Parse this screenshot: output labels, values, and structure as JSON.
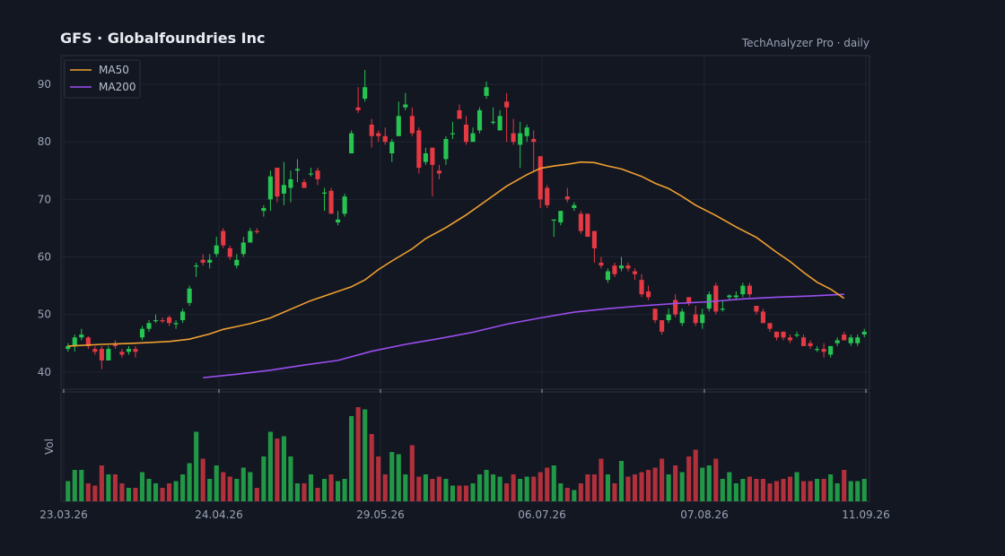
{
  "chart_data": {
    "type": "candlestick",
    "title": "GFS  ·  Globalfoundries Inc",
    "subtitle": "TechAnalyzer Pro · daily",
    "colors": {
      "background": "#131722",
      "grid": "#1f2433",
      "up": "#26c451",
      "down": "#e53944",
      "ma50": "#f0a030",
      "ma200": "#9b4ef0",
      "text": "#9aa3b5"
    },
    "ylim": [
      37,
      95
    ],
    "yticks": [
      40,
      50,
      60,
      70,
      80,
      90
    ],
    "xticks": [
      "23.03.26",
      "24.04.26",
      "29.05.26",
      "06.07.26",
      "07.08.26",
      "11.09.26"
    ],
    "volume_label": "Vol",
    "legend": [
      "MA50",
      "MA200"
    ],
    "legend_position": "top-left",
    "candles": [
      [
        44.0,
        45.0,
        43.5,
        44.5,
        0.9
      ],
      [
        44.5,
        46.5,
        43.5,
        46.0,
        1.4
      ],
      [
        46.0,
        47.5,
        45.5,
        46.5,
        1.4
      ],
      [
        46.0,
        46.2,
        44.0,
        44.5,
        0.8
      ],
      [
        44.0,
        44.5,
        43.0,
        43.5,
        0.7
      ],
      [
        44.0,
        44.5,
        40.5,
        42.0,
        1.6
      ],
      [
        42.0,
        44.5,
        42.0,
        44.0,
        1.2
      ],
      [
        45.0,
        45.5,
        44.0,
        44.5,
        1.2
      ],
      [
        43.5,
        44.0,
        42.5,
        43.0,
        0.8
      ],
      [
        43.5,
        44.5,
        43.0,
        44.0,
        0.6
      ],
      [
        44.0,
        44.5,
        42.5,
        43.5,
        0.6
      ],
      [
        46.0,
        48.0,
        45.5,
        47.5,
        1.3
      ],
      [
        47.5,
        49.0,
        47.0,
        48.5,
        1.0
      ],
      [
        49.0,
        50.0,
        48.5,
        49.0,
        0.8
      ],
      [
        49.0,
        49.5,
        48.5,
        48.8,
        0.6
      ],
      [
        49.5,
        49.8,
        48.0,
        48.5,
        0.8
      ],
      [
        48.3,
        49.0,
        47.5,
        48.5,
        0.9
      ],
      [
        49.0,
        51.0,
        48.5,
        50.5,
        1.2
      ],
      [
        52.0,
        55.0,
        51.5,
        54.5,
        1.7
      ],
      [
        58.5,
        59.0,
        56.5,
        58.5,
        3.1
      ],
      [
        59.5,
        60.5,
        58.5,
        59.0,
        1.9
      ],
      [
        59.0,
        60.5,
        58.0,
        59.5,
        1.0
      ],
      [
        60.5,
        63.5,
        60.0,
        62.0,
        1.6
      ],
      [
        64.5,
        65.0,
        61.5,
        62.0,
        1.3
      ],
      [
        61.5,
        62.0,
        59.5,
        60.0,
        1.1
      ],
      [
        58.5,
        60.5,
        58.0,
        59.5,
        1.0
      ],
      [
        60.5,
        63.5,
        60.0,
        62.5,
        1.5
      ],
      [
        62.5,
        65.0,
        62.5,
        64.5,
        1.3
      ],
      [
        64.5,
        65.0,
        64.0,
        64.3,
        0.6
      ],
      [
        68.0,
        69.0,
        67.0,
        68.5,
        2.0
      ],
      [
        70.0,
        75.0,
        68.0,
        74.0,
        3.1
      ],
      [
        75.5,
        75.5,
        69.5,
        70.5,
        2.8
      ],
      [
        71.0,
        76.5,
        69.0,
        72.5,
        2.9
      ],
      [
        72.0,
        75.0,
        69.5,
        73.5,
        2.0
      ],
      [
        75.0,
        77.0,
        73.0,
        75.3,
        0.8
      ],
      [
        73.0,
        73.5,
        72.0,
        72.0,
        0.8
      ],
      [
        74.5,
        75.5,
        74.0,
        74.5,
        1.2
      ],
      [
        75.0,
        75.5,
        72.5,
        73.5,
        0.6
      ],
      [
        71.0,
        72.0,
        68.0,
        71.2,
        1.0
      ],
      [
        71.5,
        72.0,
        68.0,
        67.5,
        1.2
      ],
      [
        66.0,
        68.0,
        65.5,
        66.5,
        0.9
      ],
      [
        67.5,
        71.0,
        67.0,
        70.5,
        1.0
      ],
      [
        78.0,
        82.0,
        78.0,
        81.5,
        3.8
      ],
      [
        86.0,
        89.5,
        85.0,
        85.5,
        4.2
      ],
      [
        87.5,
        92.5,
        87.0,
        89.5,
        4.1
      ],
      [
        83.0,
        84.0,
        79.0,
        81.0,
        3.0
      ],
      [
        81.5,
        82.0,
        80.0,
        81.0,
        2.0
      ],
      [
        81.0,
        82.5,
        79.5,
        80.0,
        1.2
      ],
      [
        78.0,
        80.5,
        76.5,
        80.0,
        2.2
      ],
      [
        81.0,
        87.0,
        81.0,
        84.5,
        2.1
      ],
      [
        86.0,
        88.5,
        85.5,
        86.5,
        1.2
      ],
      [
        84.5,
        86.0,
        81.0,
        81.5,
        2.5
      ],
      [
        82.0,
        82.5,
        74.5,
        75.5,
        1.1
      ],
      [
        76.5,
        79.0,
        76.0,
        78.0,
        1.2
      ],
      [
        79.0,
        79.0,
        70.5,
        76.0,
        1.0
      ],
      [
        75.0,
        76.0,
        73.5,
        74.5,
        1.1
      ],
      [
        77.0,
        81.0,
        76.0,
        80.5,
        1.0
      ],
      [
        81.5,
        83.5,
        80.5,
        81.5,
        0.7
      ],
      [
        85.5,
        86.5,
        84.5,
        84.0,
        0.7
      ],
      [
        83.0,
        84.5,
        79.5,
        80.0,
        0.7
      ],
      [
        80.0,
        82.5,
        80.0,
        81.5,
        0.8
      ],
      [
        82.0,
        86.0,
        81.5,
        85.5,
        1.2
      ],
      [
        88.0,
        90.5,
        87.5,
        89.5,
        1.4
      ],
      [
        83.5,
        86.0,
        83.0,
        83.5,
        1.2
      ],
      [
        82.0,
        85.5,
        82.0,
        84.5,
        1.1
      ],
      [
        87.0,
        88.5,
        80.0,
        86.0,
        0.8
      ],
      [
        81.5,
        84.0,
        79.5,
        80.0,
        1.2
      ],
      [
        79.5,
        83.5,
        75.5,
        81.5,
        1.0
      ],
      [
        81.0,
        83.0,
        80.0,
        82.5,
        1.1
      ],
      [
        80.5,
        82.0,
        75.0,
        80.0,
        1.1
      ],
      [
        77.5,
        77.5,
        68.5,
        70.0,
        1.3
      ],
      [
        72.0,
        72.5,
        68.5,
        69.0,
        1.5
      ],
      [
        66.5,
        66.5,
        63.5,
        66.5,
        1.6
      ],
      [
        66.0,
        68.0,
        65.5,
        68.0,
        0.8
      ],
      [
        70.5,
        72.0,
        69.5,
        70.0,
        0.6
      ],
      [
        68.5,
        69.5,
        68.0,
        69.0,
        0.5
      ],
      [
        67.5,
        68.0,
        64.0,
        64.5,
        0.8
      ],
      [
        67.5,
        67.5,
        63.5,
        63.5,
        1.2
      ],
      [
        64.5,
        64.5,
        59.0,
        61.5,
        1.2
      ],
      [
        59.0,
        60.0,
        58.0,
        58.5,
        1.9
      ],
      [
        56.0,
        58.0,
        55.5,
        57.5,
        1.2
      ],
      [
        58.5,
        59.0,
        56.5,
        57.0,
        0.8
      ],
      [
        58.0,
        60.0,
        57.5,
        58.5,
        1.8
      ],
      [
        58.5,
        59.0,
        57.5,
        58.0,
        1.1
      ],
      [
        57.5,
        58.0,
        56.0,
        57.0,
        1.2
      ],
      [
        56.0,
        57.0,
        53.0,
        53.5,
        1.3
      ],
      [
        54.0,
        55.0,
        52.5,
        53.0,
        1.4
      ],
      [
        51.0,
        51.0,
        48.5,
        49.0,
        1.5
      ],
      [
        49.0,
        49.0,
        46.5,
        47.0,
        1.9
      ],
      [
        49.0,
        51.0,
        48.5,
        50.0,
        1.2
      ],
      [
        52.5,
        53.5,
        49.5,
        50.0,
        1.6
      ],
      [
        48.5,
        51.0,
        48.0,
        50.5,
        1.3
      ],
      [
        53.0,
        53.0,
        51.5,
        52.0,
        2.0
      ],
      [
        50.0,
        51.5,
        48.0,
        48.5,
        2.3
      ],
      [
        48.5,
        51.0,
        47.5,
        50.0,
        1.5
      ],
      [
        51.0,
        54.0,
        50.5,
        53.5,
        1.6
      ],
      [
        55.0,
        55.5,
        50.0,
        50.5,
        1.9
      ],
      [
        51.0,
        52.5,
        50.5,
        51.0,
        1.0
      ],
      [
        53.0,
        53.5,
        52.5,
        53.3,
        1.3
      ],
      [
        53.0,
        54.0,
        52.5,
        53.3,
        0.8
      ],
      [
        53.5,
        55.5,
        53.0,
        55.0,
        1.0
      ],
      [
        55.0,
        55.5,
        53.0,
        53.5,
        1.1
      ],
      [
        51.5,
        51.5,
        50.0,
        50.5,
        1.0
      ],
      [
        50.5,
        51.0,
        48.5,
        48.5,
        1.0
      ],
      [
        48.5,
        48.5,
        47.0,
        47.5,
        0.8
      ],
      [
        47.0,
        47.0,
        45.5,
        46.0,
        0.9
      ],
      [
        47.0,
        47.0,
        45.5,
        46.0,
        1.0
      ],
      [
        46.0,
        46.5,
        45.0,
        45.5,
        1.1
      ],
      [
        46.5,
        47.0,
        46.0,
        46.5,
        1.3
      ],
      [
        46.0,
        46.5,
        44.5,
        44.5,
        0.9
      ],
      [
        45.0,
        45.5,
        44.0,
        44.5,
        0.9
      ],
      [
        44.0,
        44.5,
        43.5,
        44.0,
        1.0
      ],
      [
        44.0,
        45.0,
        42.5,
        43.5,
        1.0
      ],
      [
        43.0,
        44.5,
        42.5,
        44.5,
        1.2
      ],
      [
        45.0,
        46.0,
        44.5,
        45.5,
        0.8
      ],
      [
        46.5,
        47.0,
        45.5,
        45.5,
        1.4
      ],
      [
        45.0,
        46.5,
        44.5,
        46.0,
        0.9
      ],
      [
        45.0,
        46.5,
        44.5,
        46.0,
        0.9
      ],
      [
        46.5,
        47.5,
        46.0,
        47.0,
        1.0
      ]
    ],
    "ma50": [
      [
        0,
        44.5
      ],
      [
        5,
        44.8
      ],
      [
        10,
        45.0
      ],
      [
        15,
        45.3
      ],
      [
        18,
        45.7
      ],
      [
        21,
        46.6
      ],
      [
        23,
        47.4
      ],
      [
        25,
        47.9
      ],
      [
        27,
        48.4
      ],
      [
        30,
        49.4
      ],
      [
        33,
        50.9
      ],
      [
        36,
        52.4
      ],
      [
        39,
        53.6
      ],
      [
        42,
        54.8
      ],
      [
        44,
        56.0
      ],
      [
        46,
        57.8
      ],
      [
        48,
        59.3
      ],
      [
        51,
        61.4
      ],
      [
        53,
        63.2
      ],
      [
        56,
        65.1
      ],
      [
        59,
        67.3
      ],
      [
        62,
        69.8
      ],
      [
        65,
        72.3
      ],
      [
        68,
        74.3
      ],
      [
        70,
        75.4
      ],
      [
        72,
        75.8
      ],
      [
        74,
        76.1
      ],
      [
        76,
        76.5
      ],
      [
        78,
        76.4
      ],
      [
        80,
        75.8
      ],
      [
        82,
        75.3
      ],
      [
        85,
        74.0
      ],
      [
        87,
        72.8
      ],
      [
        89,
        71.9
      ],
      [
        91,
        70.5
      ],
      [
        93,
        69.0
      ],
      [
        96,
        67.2
      ],
      [
        99,
        65.2
      ],
      [
        102,
        63.4
      ],
      [
        105,
        60.8
      ],
      [
        107,
        59.2
      ],
      [
        109,
        57.3
      ],
      [
        111,
        55.6
      ],
      [
        113,
        54.4
      ],
      [
        115,
        52.8
      ]
    ],
    "ma200": [
      [
        20,
        39.0
      ],
      [
        25,
        39.6
      ],
      [
        30,
        40.3
      ],
      [
        35,
        41.2
      ],
      [
        40,
        42.0
      ],
      [
        45,
        43.6
      ],
      [
        50,
        44.8
      ],
      [
        55,
        45.8
      ],
      [
        60,
        46.9
      ],
      [
        65,
        48.3
      ],
      [
        70,
        49.4
      ],
      [
        75,
        50.4
      ],
      [
        80,
        51.0
      ],
      [
        85,
        51.5
      ],
      [
        90,
        51.9
      ],
      [
        95,
        52.2
      ],
      [
        100,
        52.7
      ],
      [
        105,
        53.0
      ],
      [
        110,
        53.2
      ],
      [
        115,
        53.5
      ]
    ]
  }
}
